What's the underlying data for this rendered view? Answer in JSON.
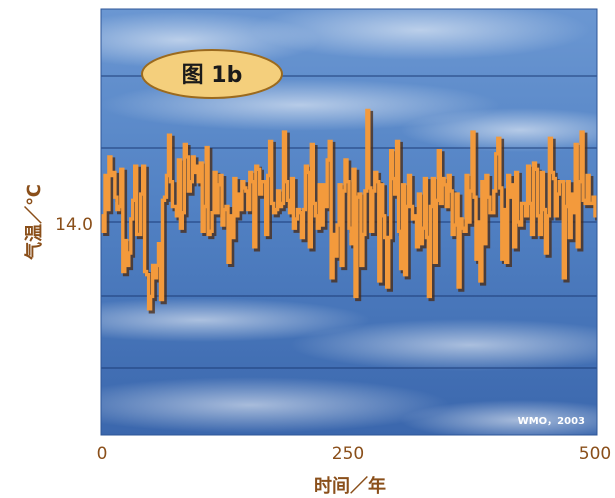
{
  "chart_data": {
    "type": "line",
    "title": "图 1b",
    "xlabel": "时间／年",
    "ylabel": "气温／℃",
    "xlim": [
      0,
      500
    ],
    "x_ticks": [
      "0",
      "250",
      "500"
    ],
    "y_ticks": [
      {
        "value": 14.0,
        "label": "14.0"
      }
    ],
    "grid": true,
    "legend": "none",
    "source_note": "WMO，2003",
    "colors": {
      "line": "#f39a3c",
      "line_shadow": "#4a2a12",
      "gridline": "#1f3f7a",
      "badge_fill": "#f4cf7c",
      "badge_stroke": "#9b6a1e",
      "axis_text": "#8a4f1a",
      "sky_top": "#5f8ccb",
      "sky_bottom": "#3e6cb2"
    },
    "series": [
      {
        "x_step": 2,
        "x_start": 0,
        "values": [
          14.02,
          13.97,
          14.15,
          14.04,
          14.21,
          14.15,
          14.16,
          14.08,
          14.04,
          14.05,
          14.17,
          13.84,
          13.94,
          13.86,
          13.9,
          14.01,
          14.07,
          14.18,
          13.96,
          13.96,
          14.09,
          14.18,
          13.84,
          13.83,
          13.72,
          13.76,
          13.86,
          13.82,
          13.86,
          13.93,
          13.75,
          14.07,
          14.08,
          14.15,
          14.28,
          14.13,
          14.05,
          14.05,
          14.02,
          14.2,
          13.98,
          14.03,
          14.25,
          14.21,
          14.1,
          14.13,
          14.21,
          14.16,
          14.18,
          14.13,
          14.19,
          13.97,
          14.05,
          14.24,
          13.96,
          13.97,
          14.03,
          14.16,
          14.03,
          14.12,
          14.15,
          13.99,
          14.04,
          14.05,
          13.87,
          14.02,
          13.95,
          14.14,
          14.02,
          14.09,
          14.04,
          14.13,
          14.11,
          14.1,
          14.04,
          14.16,
          14.13,
          13.92,
          14.18,
          14.17,
          14.09,
          14.13,
          14.13,
          13.96,
          14.15,
          14.26,
          14.06,
          14.03,
          14.04,
          14.1,
          14.05,
          14.06,
          14.29,
          14.13,
          14.07,
          14.03,
          14.14,
          13.98,
          14.01,
          14.04,
          14.03,
          13.95,
          14.04,
          14.18,
          14.16,
          13.92,
          14.25,
          14.06,
          14.02,
          13.98,
          14.12,
          13.99,
          14.12,
          14.05,
          14.2,
          14.26,
          13.82,
          13.96,
          13.89,
          13.99,
          14.12,
          13.86,
          14.1,
          14.2,
          14.13,
          13.98,
          13.93,
          14.17,
          13.76,
          14.08,
          14.09,
          13.86,
          13.96,
          14.1,
          14.36,
          14.11,
          13.97,
          14.1,
          14.16,
          14.13,
          13.81,
          14.12,
          14.02,
          13.95,
          13.79,
          13.95,
          14.23,
          14.14,
          14.09,
          14.26,
          13.97,
          13.85,
          14.12,
          13.83,
          14.05,
          14.15,
          14.05,
          14.01,
          14.02,
          13.92,
          14.09,
          13.93,
          13.98,
          14.14,
          13.95,
          13.76,
          14.05,
          14.14,
          13.87,
          14.07,
          14.23,
          14.06,
          14.14,
          14.12,
          14.05,
          14.15,
          14.1,
          13.96,
          13.99,
          14.09,
          13.79,
          14.01,
          13.98,
          13.97,
          14.15,
          14.0,
          14.1,
          14.29,
          14.08,
          13.88,
          14.0,
          13.81,
          14.13,
          13.93,
          14.15,
          14.08,
          14.03,
          14.03,
          14.1,
          14.22,
          14.27,
          14.11,
          13.88,
          14.04,
          13.87,
          14.15,
          14.08,
          14.12,
          13.92,
          14.16,
          14.0,
          13.99,
          14.06,
          14.06,
          14.02,
          14.18,
          14.06,
          13.96,
          14.19,
          14.17,
          14.02,
          13.96,
          14.16,
          14.04,
          13.9,
          14.02,
          14.27,
          14.16,
          14.14,
          14.02,
          14.09,
          14.13,
          14.13,
          13.82,
          14.05,
          14.13,
          13.95,
          14.09,
          14.03,
          14.25,
          13.92,
          14.13,
          14.29,
          14.07,
          14.06,
          14.15,
          14.06,
          14.06,
          14.08,
          14.02
        ]
      }
    ]
  }
}
